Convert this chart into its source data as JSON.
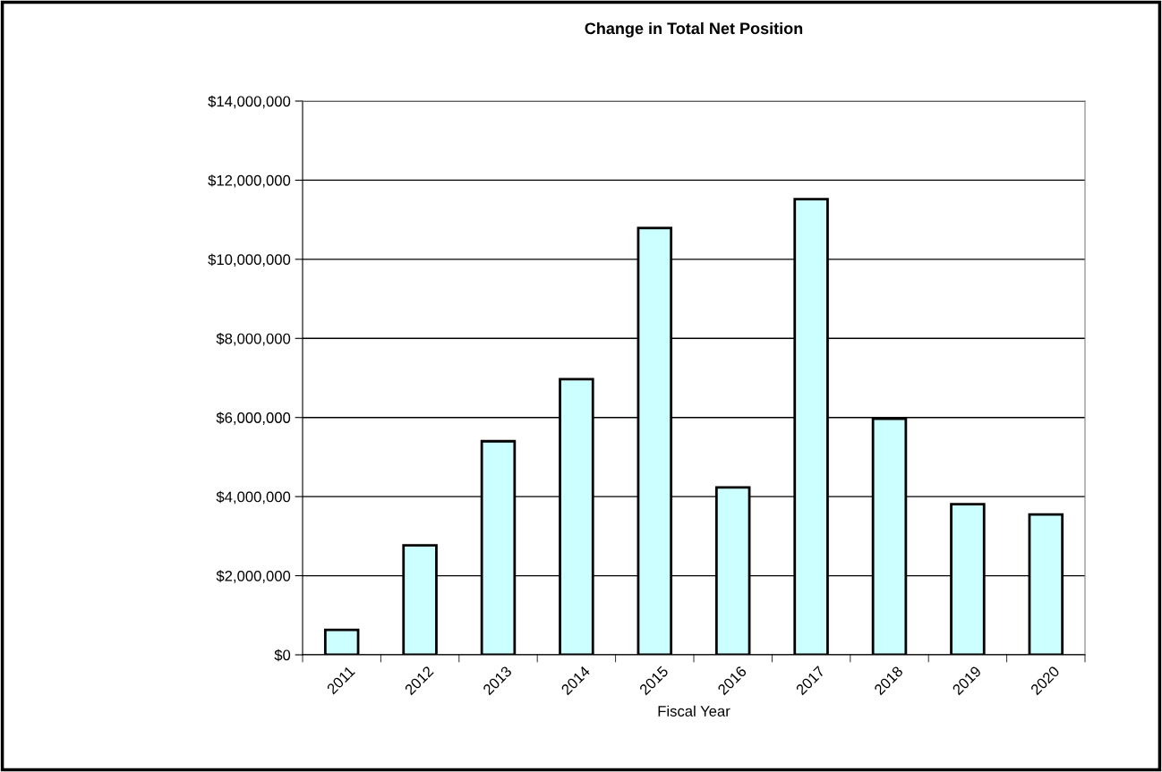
{
  "chart_data": {
    "type": "bar",
    "title": "Change in Total Net Position",
    "xlabel": "Fiscal Year",
    "categories": [
      "2011",
      "2012",
      "2013",
      "2014",
      "2015",
      "2016",
      "2017",
      "2018",
      "2019",
      "2020"
    ],
    "values": [
      630000,
      2770000,
      5400000,
      6970000,
      10790000,
      4230000,
      11520000,
      5970000,
      3810000,
      3550000
    ],
    "color": "#ccffff",
    "ylim": [
      0,
      14000000
    ],
    "yticks": [
      {
        "value": 0,
        "label": "$0"
      },
      {
        "value": 2000000,
        "label": "$2,000,000"
      },
      {
        "value": 4000000,
        "label": "$4,000,000"
      },
      {
        "value": 6000000,
        "label": "$6,000,000"
      },
      {
        "value": 8000000,
        "label": "$8,000,000"
      },
      {
        "value": 10000000,
        "label": "$10,000,000"
      },
      {
        "value": 12000000,
        "label": "$12,000,000"
      },
      {
        "value": 14000000,
        "label": "$14,000,000"
      }
    ],
    "grid": "y"
  }
}
